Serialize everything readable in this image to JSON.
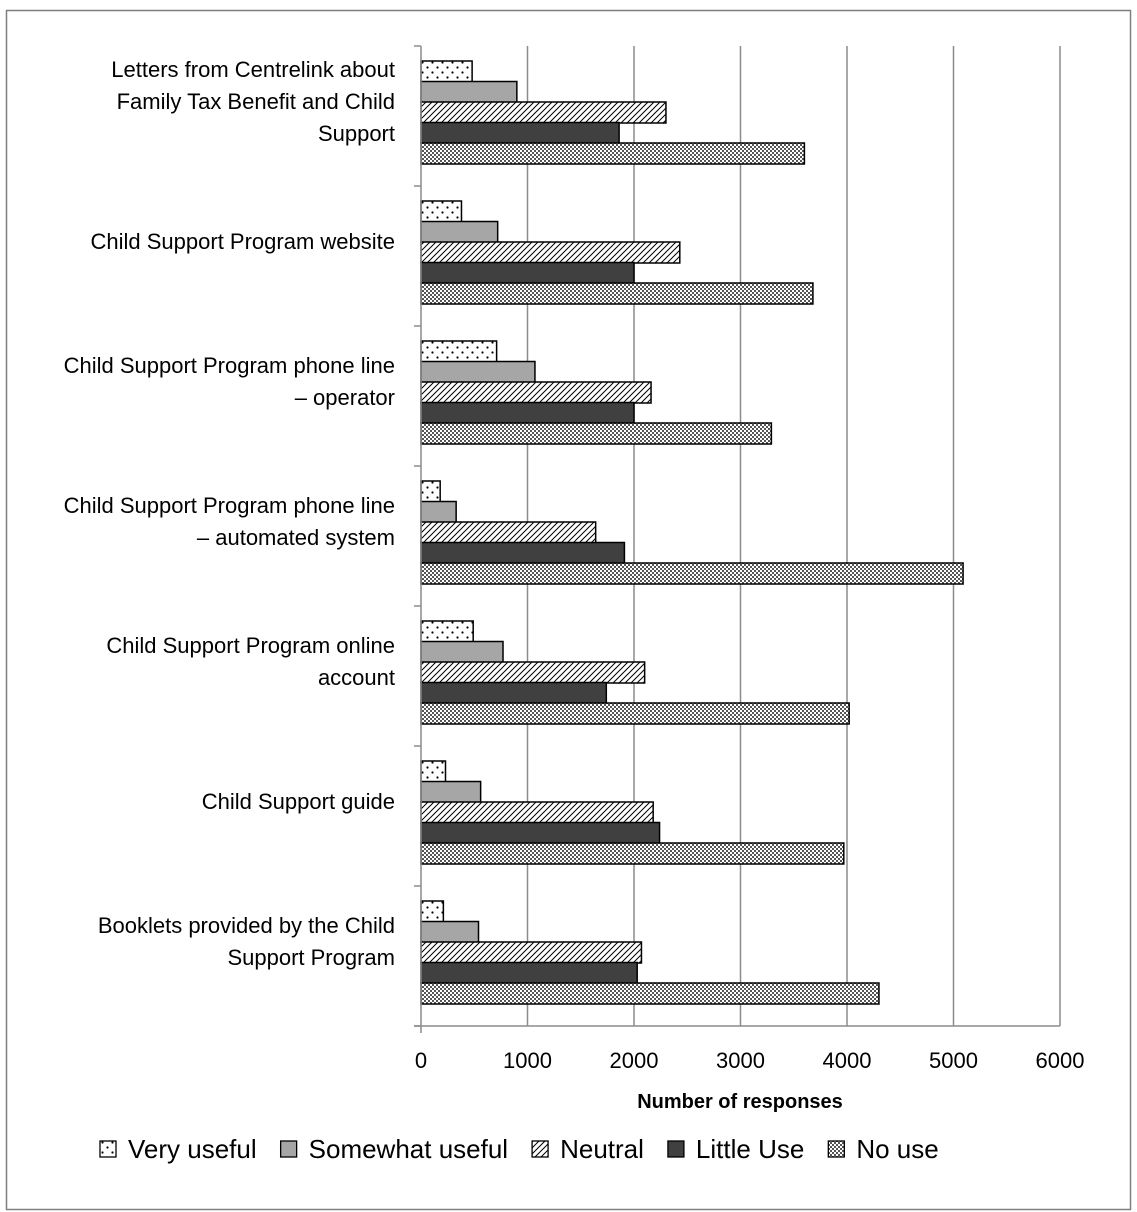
{
  "chart_data": {
    "type": "bar",
    "orientation": "horizontal",
    "categories": [
      "Letters from Centrelink about Family Tax Benefit and Child Support",
      "Child Support Program website",
      "Child Support Program phone line – operator",
      "Child Support Program phone line – automated system",
      "Child Support Program online account",
      "Child Support guide",
      "Booklets provided by the Child Support Program"
    ],
    "category_lines": [
      [
        "Letters from Centrelink about",
        "Family Tax Benefit and Child",
        "Support"
      ],
      [
        "Child Support Program website"
      ],
      [
        "Child Support Program phone line",
        "– operator"
      ],
      [
        "Child Support Program phone line",
        "– automated system"
      ],
      [
        "Child Support Program online",
        "account"
      ],
      [
        "Child Support guide"
      ],
      [
        "Booklets provided by the Child",
        "Support Program"
      ]
    ],
    "series": [
      {
        "name": "Very useful",
        "pattern": "dots",
        "values": [
          480,
          380,
          710,
          180,
          490,
          230,
          210
        ]
      },
      {
        "name": "Somewhat useful",
        "pattern": "gray",
        "values": [
          900,
          720,
          1070,
          330,
          770,
          560,
          540
        ]
      },
      {
        "name": "Neutral",
        "pattern": "diagonal",
        "values": [
          2300,
          2430,
          2160,
          1640,
          2100,
          2180,
          2070
        ]
      },
      {
        "name": "Little Use",
        "pattern": "dark",
        "values": [
          1860,
          2000,
          2000,
          1910,
          1740,
          2240,
          2030
        ]
      },
      {
        "name": "No use",
        "pattern": "crosshatch",
        "values": [
          3600,
          3680,
          3290,
          5090,
          4020,
          3970,
          4300
        ]
      }
    ],
    "xlabel": "Number of responses",
    "ylabel": "",
    "xlim": [
      0,
      6000
    ],
    "xticks": [
      "0",
      "1000",
      "2000",
      "3000",
      "4000",
      "5000",
      "6000"
    ],
    "grid": "vertical",
    "legend_position": "bottom",
    "colors": {
      "border": "#7f7f7f",
      "grid": "#8c8c8c",
      "bar_outline": "#000000",
      "gray_fill": "#a6a6a6",
      "dark_fill": "#404040"
    }
  }
}
